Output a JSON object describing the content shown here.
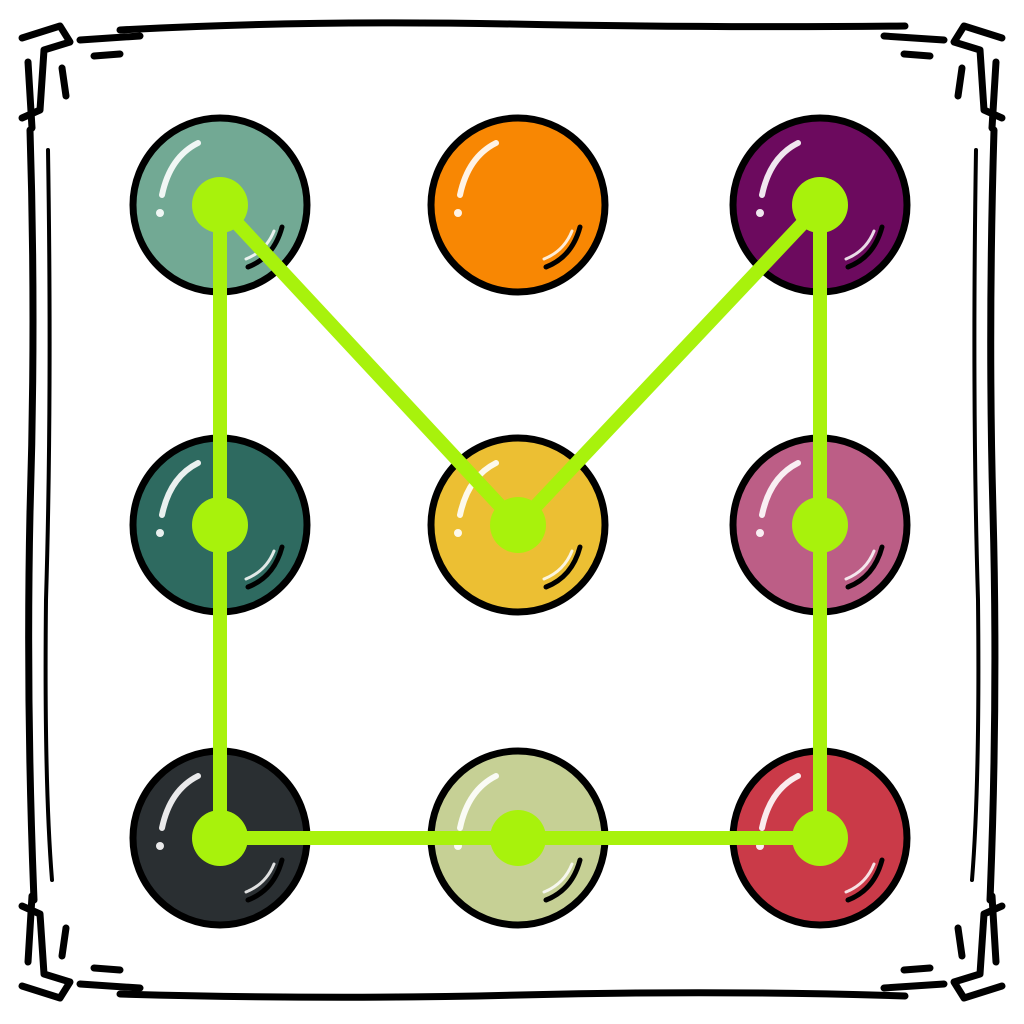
{
  "pattern_lock": {
    "grid": {
      "rows": 3,
      "cols": 3
    },
    "line_color": "#a8f20c",
    "node_color": "#a8f20c",
    "dots": [
      {
        "row": 0,
        "col": 0,
        "color": "#72a994"
      },
      {
        "row": 0,
        "col": 1,
        "color": "#f88703"
      },
      {
        "row": 0,
        "col": 2,
        "color": "#6c0a5e"
      },
      {
        "row": 1,
        "col": 0,
        "color": "#2e6a60"
      },
      {
        "row": 1,
        "col": 1,
        "color": "#ecbf33"
      },
      {
        "row": 1,
        "col": 2,
        "color": "#bc5e86"
      },
      {
        "row": 2,
        "col": 0,
        "color": "#2a2f32"
      },
      {
        "row": 2,
        "col": 1,
        "color": "#c6d095"
      },
      {
        "row": 2,
        "col": 2,
        "color": "#ca3a48"
      }
    ],
    "pattern_sequence": [
      0,
      4,
      2,
      5,
      8,
      7,
      6,
      3,
      0
    ]
  }
}
